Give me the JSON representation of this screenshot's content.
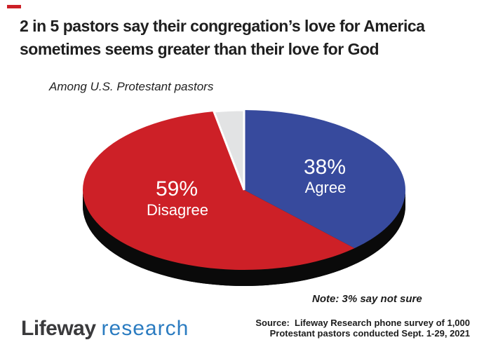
{
  "accent_dash_color": "#cc2027",
  "header": {
    "title_line1": "2 in 5 pastors say their congregation’s love for America",
    "title_line2": "sometimes seems greater than their love for God",
    "subtitle": "Among U.S. Protestant pastors"
  },
  "chart_data": {
    "type": "pie",
    "style": "3d",
    "title": "2 in 5 pastors say their congregation’s love for America sometimes seems greater than their love for God",
    "subtitle": "Among U.S. Protestant pastors",
    "start_angle_deg": 0,
    "direction": "clockwise",
    "depth_color": "#0a0a0a",
    "note": "Note: 3% say not sure",
    "slices": [
      {
        "label": "Agree",
        "value": 38,
        "pct_label": "38%",
        "color": "#374a9d"
      },
      {
        "label": "Disagree",
        "value": 59,
        "pct_label": "59%",
        "color": "#cd2027"
      },
      {
        "label": "Not sure",
        "value": 3,
        "pct_label": "3%",
        "color": "#e2e3e4",
        "stroke": "#ffffff",
        "stroke_width": 3
      }
    ]
  },
  "footer": {
    "logo_word1": "Lifeway",
    "logo_word2": "research",
    "logo_word1_color": "#3a3a3c",
    "logo_word2_color": "#2b7cc1",
    "source_line1": "Source:  Lifeway Research phone survey of 1,000",
    "source_line2": "Protestant pastors conducted Sept. 1-29, 2021"
  }
}
